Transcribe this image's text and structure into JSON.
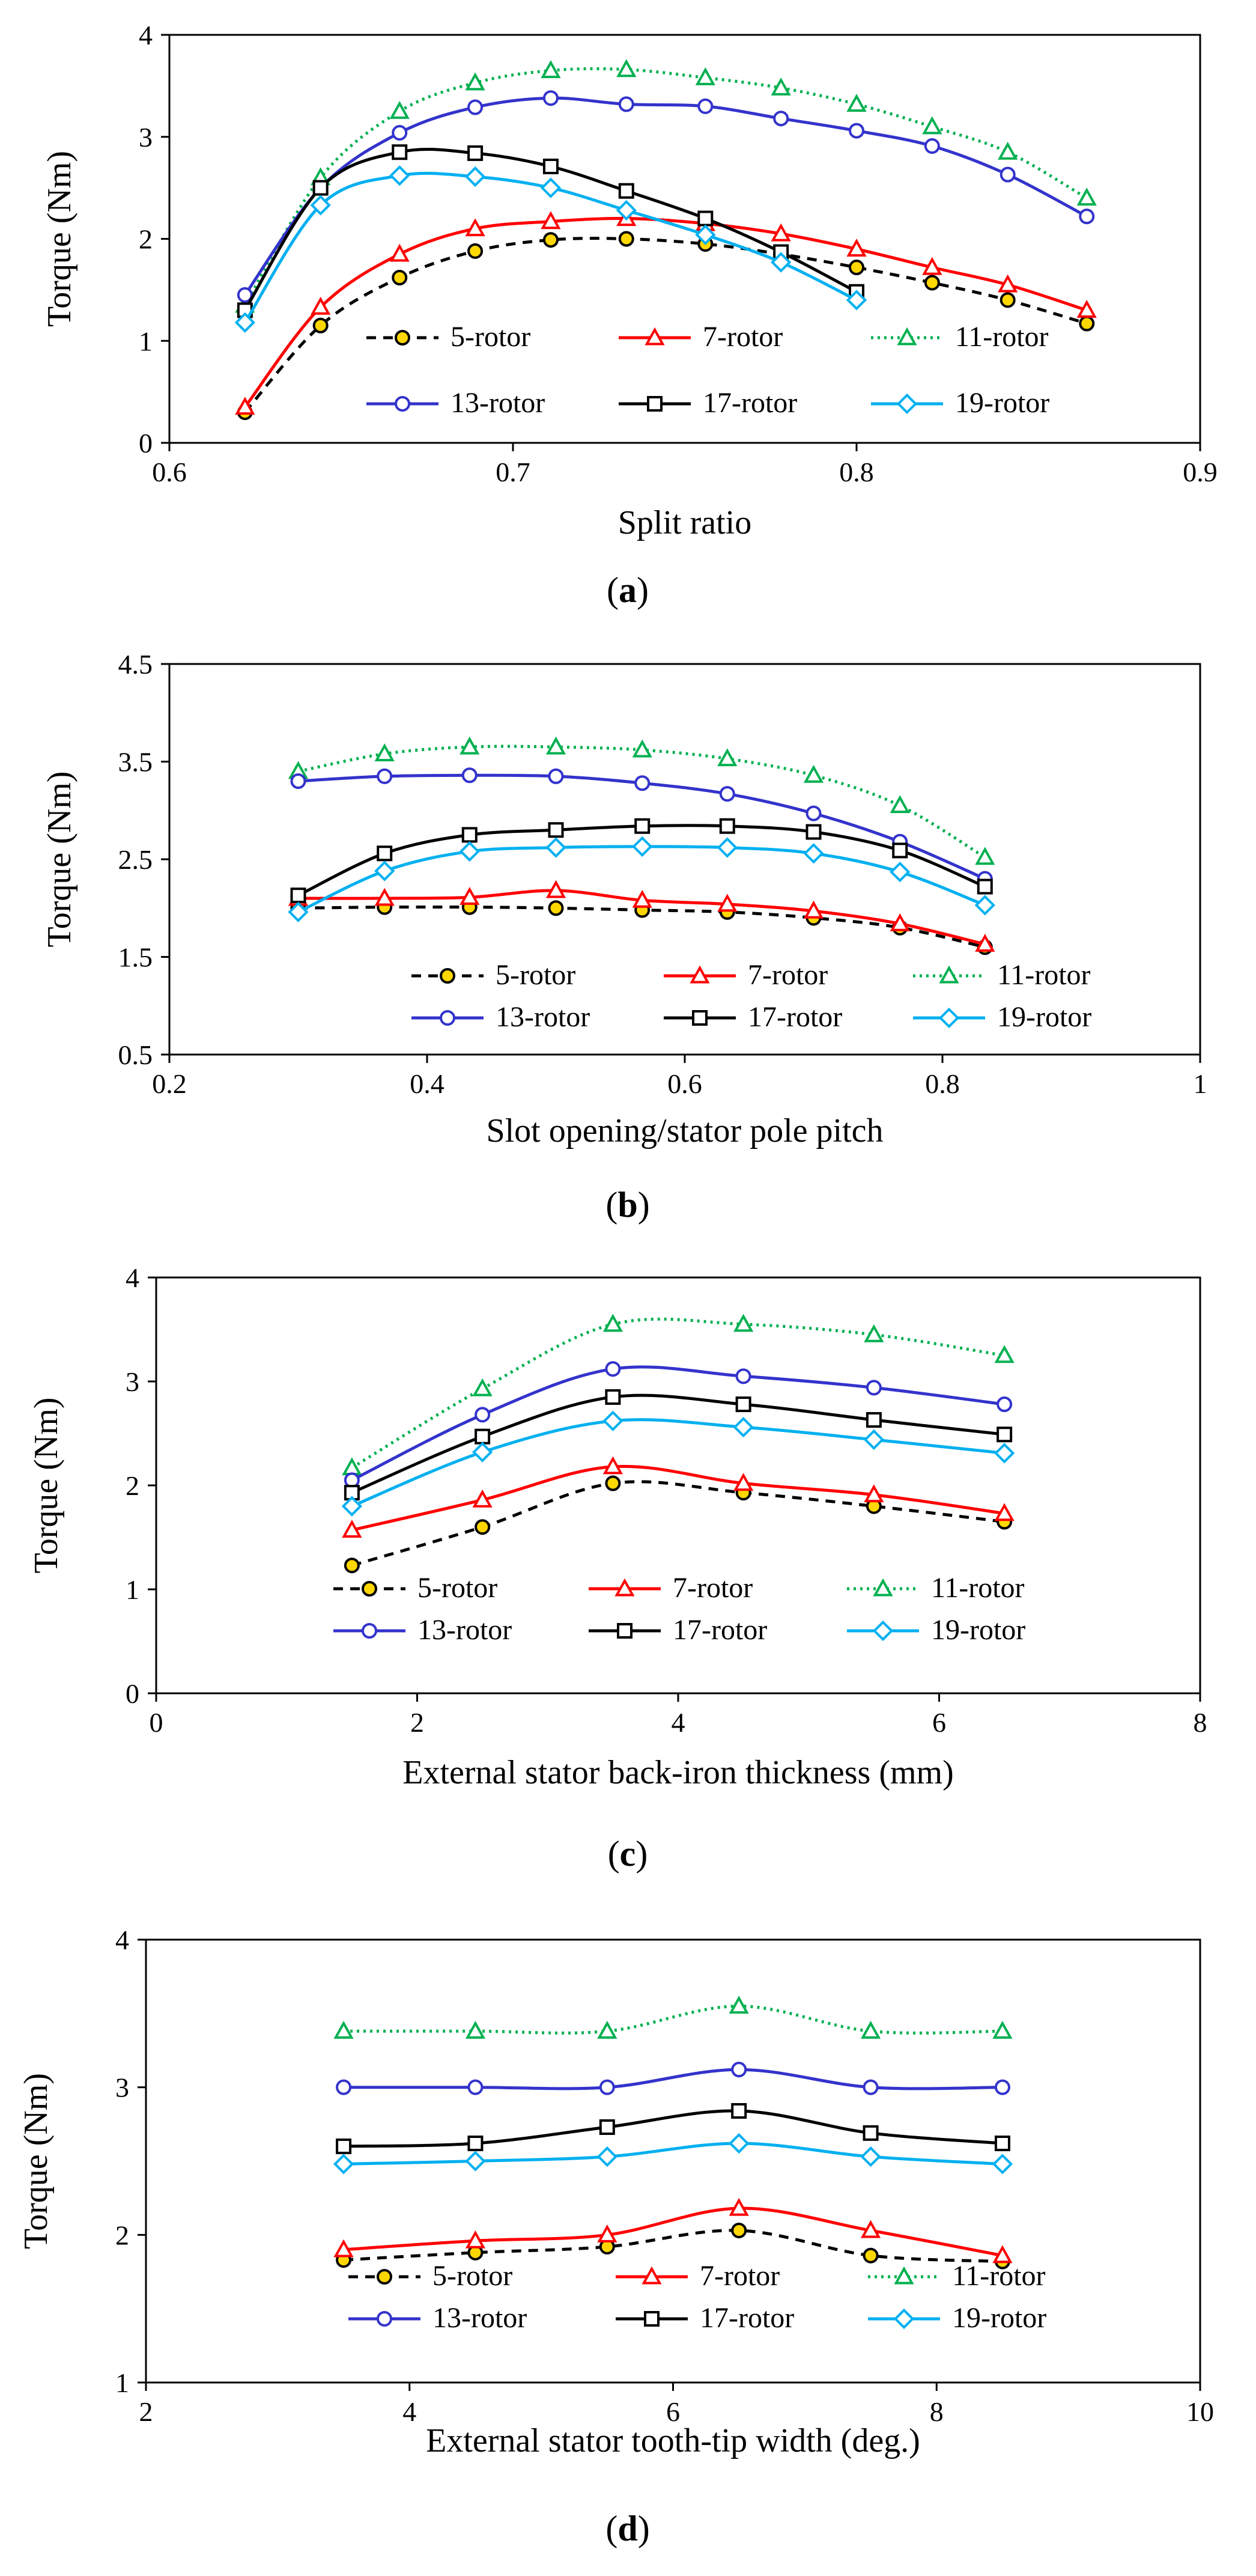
{
  "figure": {
    "series_styles": {
      "5-rotor": {
        "color": "#000000",
        "dash": "16 12",
        "marker": "circle",
        "marker_fill": "#FFD700"
      },
      "7-rotor": {
        "color": "#FF0000",
        "dash": "",
        "marker": "triangle",
        "marker_fill": "#FFFFFF"
      },
      "11-rotor": {
        "color": "#00B050",
        "dash": "4 7",
        "marker": "triangle",
        "marker_fill": "#FFFFFF"
      },
      "13-rotor": {
        "color": "#3333CC",
        "dash": "",
        "marker": "circle",
        "marker_fill": "#FFFFFF"
      },
      "17-rotor": {
        "color": "#000000",
        "dash": "",
        "marker": "square",
        "marker_fill": "#FFFFFF"
      },
      "19-rotor": {
        "color": "#00B0F0",
        "dash": "",
        "marker": "diamond",
        "marker_fill": "#FFFFFF"
      }
    }
  },
  "chart_data": [
    {
      "type": "line",
      "caption_letter": "a",
      "xlabel": "Split ratio",
      "ylabel": "Torque (Nm)",
      "xlim": [
        0.6,
        0.9
      ],
      "ylim": [
        0,
        4
      ],
      "xticks": [
        0.6,
        0.7,
        0.8,
        0.9
      ],
      "yticks": [
        0,
        1,
        2,
        3,
        4
      ],
      "xtick_labels": [
        "0.6",
        "0.7",
        "0.8",
        "0.9"
      ],
      "ytick_labels": [
        "0",
        "1",
        "2",
        "3",
        "4"
      ],
      "legend": {
        "columns": 3,
        "placement": "bottom-inside"
      },
      "series": [
        {
          "name": "5-rotor",
          "x": [
            0.622,
            0.644,
            0.667,
            0.689,
            0.711,
            0.733,
            0.756,
            0.778,
            0.8,
            0.822,
            0.844,
            0.867
          ],
          "y": [
            0.3,
            1.15,
            1.62,
            1.88,
            1.99,
            2.0,
            1.95,
            1.85,
            1.72,
            1.57,
            1.4,
            1.17
          ]
        },
        {
          "name": "7-rotor",
          "x": [
            0.622,
            0.644,
            0.667,
            0.689,
            0.711,
            0.733,
            0.756,
            0.778,
            0.8,
            0.822,
            0.844,
            0.867
          ],
          "y": [
            0.35,
            1.33,
            1.85,
            2.1,
            2.17,
            2.2,
            2.15,
            2.05,
            1.9,
            1.72,
            1.55,
            1.3
          ]
        },
        {
          "name": "11-rotor",
          "x": [
            0.622,
            0.644,
            0.667,
            0.689,
            0.711,
            0.733,
            0.756,
            0.778,
            0.8,
            0.822,
            0.844,
            0.867
          ],
          "y": [
            1.35,
            2.6,
            3.25,
            3.53,
            3.65,
            3.66,
            3.58,
            3.48,
            3.32,
            3.1,
            2.85,
            2.4
          ]
        },
        {
          "name": "13-rotor",
          "x": [
            0.622,
            0.644,
            0.667,
            0.689,
            0.711,
            0.733,
            0.756,
            0.778,
            0.8,
            0.822,
            0.844,
            0.867
          ],
          "y": [
            1.45,
            2.5,
            3.04,
            3.29,
            3.38,
            3.32,
            3.3,
            3.18,
            3.06,
            2.91,
            2.63,
            2.22
          ]
        },
        {
          "name": "17-rotor",
          "x": [
            0.622,
            0.644,
            0.667,
            0.689,
            0.711,
            0.733,
            0.756,
            0.778,
            0.8
          ],
          "y": [
            1.3,
            2.5,
            2.85,
            2.84,
            2.71,
            2.47,
            2.2,
            1.87,
            1.48
          ]
        },
        {
          "name": "19-rotor",
          "x": [
            0.622,
            0.644,
            0.667,
            0.689,
            0.711,
            0.733,
            0.756,
            0.778,
            0.8
          ],
          "y": [
            1.18,
            2.33,
            2.62,
            2.61,
            2.5,
            2.28,
            2.04,
            1.77,
            1.4
          ]
        }
      ]
    },
    {
      "type": "line",
      "caption_letter": "b",
      "xlabel": "Slot opening/stator pole pitch",
      "ylabel": "Torque (Nm)",
      "xlim": [
        0.2,
        1
      ],
      "ylim": [
        0.5,
        4.5
      ],
      "xticks": [
        0.2,
        0.4,
        0.6,
        0.8,
        1
      ],
      "yticks": [
        0.5,
        1.5,
        2.5,
        3.5,
        4.5
      ],
      "xtick_labels": [
        "0.2",
        "0.4",
        "0.6",
        "0.8",
        "1"
      ],
      "ytick_labels": [
        "0.5",
        "1.5",
        "2.5",
        "3.5",
        "4.5"
      ],
      "legend": {
        "columns": 3,
        "placement": "bottom-inside"
      },
      "series": [
        {
          "name": "5-rotor",
          "x": [
            0.3,
            0.367,
            0.433,
            0.5,
            0.567,
            0.633,
            0.7,
            0.767,
            0.833
          ],
          "y": [
            2.0,
            2.01,
            2.01,
            2.0,
            1.98,
            1.96,
            1.9,
            1.8,
            1.6
          ]
        },
        {
          "name": "7-rotor",
          "x": [
            0.3,
            0.367,
            0.433,
            0.5,
            0.567,
            0.633,
            0.7,
            0.767,
            0.833
          ],
          "y": [
            2.1,
            2.1,
            2.11,
            2.18,
            2.08,
            2.04,
            1.97,
            1.84,
            1.63
          ]
        },
        {
          "name": "11-rotor",
          "x": [
            0.3,
            0.367,
            0.433,
            0.5,
            0.567,
            0.633,
            0.7,
            0.767,
            0.833
          ],
          "y": [
            3.4,
            3.58,
            3.65,
            3.65,
            3.62,
            3.53,
            3.36,
            3.05,
            2.52
          ]
        },
        {
          "name": "13-rotor",
          "x": [
            0.3,
            0.367,
            0.433,
            0.5,
            0.567,
            0.633,
            0.7,
            0.767,
            0.833
          ],
          "y": [
            3.3,
            3.35,
            3.36,
            3.35,
            3.28,
            3.17,
            2.97,
            2.68,
            2.3
          ]
        },
        {
          "name": "17-rotor",
          "x": [
            0.3,
            0.367,
            0.433,
            0.5,
            0.567,
            0.633,
            0.7,
            0.767,
            0.833
          ],
          "y": [
            2.13,
            2.56,
            2.75,
            2.8,
            2.84,
            2.84,
            2.78,
            2.59,
            2.22
          ]
        },
        {
          "name": "19-rotor",
          "x": [
            0.3,
            0.367,
            0.433,
            0.5,
            0.567,
            0.633,
            0.7,
            0.767,
            0.833
          ],
          "y": [
            1.96,
            2.38,
            2.58,
            2.62,
            2.63,
            2.62,
            2.56,
            2.37,
            2.03
          ]
        }
      ]
    },
    {
      "type": "line",
      "caption_letter": "c",
      "xlabel": "External stator back-iron thickness (mm)",
      "ylabel": "Torque (Nm)",
      "xlim": [
        0,
        8
      ],
      "ylim": [
        0,
        4
      ],
      "xticks": [
        0,
        2,
        4,
        6,
        8
      ],
      "yticks": [
        0,
        1,
        2,
        3,
        4
      ],
      "xtick_labels": [
        "0",
        "2",
        "4",
        "6",
        "8"
      ],
      "ytick_labels": [
        "0",
        "1",
        "2",
        "3",
        "4"
      ],
      "legend": {
        "columns": 3,
        "placement": "bottom-inside"
      },
      "series": [
        {
          "name": "5-rotor",
          "x": [
            1.5,
            2.5,
            3.5,
            4.5,
            5.5,
            6.5
          ],
          "y": [
            1.23,
            1.6,
            2.02,
            1.93,
            1.8,
            1.65
          ]
        },
        {
          "name": "7-rotor",
          "x": [
            1.5,
            2.5,
            3.5,
            4.5,
            5.5,
            6.5
          ],
          "y": [
            1.57,
            1.86,
            2.18,
            2.02,
            1.91,
            1.73
          ]
        },
        {
          "name": "11-rotor",
          "x": [
            1.5,
            2.5,
            3.5,
            4.5,
            5.5,
            6.5
          ],
          "y": [
            2.17,
            2.93,
            3.55,
            3.55,
            3.45,
            3.25
          ]
        },
        {
          "name": "13-rotor",
          "x": [
            1.5,
            2.5,
            3.5,
            4.5,
            5.5,
            6.5
          ],
          "y": [
            2.05,
            2.68,
            3.12,
            3.05,
            2.94,
            2.78
          ]
        },
        {
          "name": "17-rotor",
          "x": [
            1.5,
            2.5,
            3.5,
            4.5,
            5.5,
            6.5
          ],
          "y": [
            1.93,
            2.47,
            2.85,
            2.78,
            2.63,
            2.49
          ]
        },
        {
          "name": "19-rotor",
          "x": [
            1.5,
            2.5,
            3.5,
            4.5,
            5.5,
            6.5
          ],
          "y": [
            1.8,
            2.32,
            2.62,
            2.56,
            2.44,
            2.31
          ]
        }
      ]
    },
    {
      "type": "line",
      "caption_letter": "d",
      "xlabel": "External stator tooth-tip width (deg.)",
      "ylabel": "Torque (Nm)",
      "xlim": [
        2,
        10
      ],
      "ylim": [
        1,
        4
      ],
      "xticks": [
        2,
        4,
        6,
        8,
        10
      ],
      "yticks": [
        1,
        2,
        3,
        4
      ],
      "xtick_labels": [
        "2",
        "4",
        "6",
        "8",
        "10"
      ],
      "ytick_labels": [
        "1",
        "2",
        "3",
        "4"
      ],
      "legend": {
        "columns": 3,
        "placement": "bottom-inside"
      },
      "series": [
        {
          "name": "5-rotor",
          "x": [
            3.5,
            4.5,
            5.5,
            6.5,
            7.5,
            8.5
          ],
          "y": [
            1.83,
            1.88,
            1.92,
            2.03,
            1.86,
            1.82
          ]
        },
        {
          "name": "7-rotor",
          "x": [
            3.5,
            4.5,
            5.5,
            6.5,
            7.5,
            8.5
          ],
          "y": [
            1.9,
            1.96,
            2.0,
            2.18,
            2.03,
            1.86
          ]
        },
        {
          "name": "11-rotor",
          "x": [
            3.5,
            4.5,
            5.5,
            6.5,
            7.5,
            8.5
          ],
          "y": [
            3.38,
            3.38,
            3.38,
            3.55,
            3.38,
            3.38
          ]
        },
        {
          "name": "13-rotor",
          "x": [
            3.5,
            4.5,
            5.5,
            6.5,
            7.5,
            8.5
          ],
          "y": [
            3.0,
            3.0,
            3.0,
            3.12,
            3.0,
            3.0
          ]
        },
        {
          "name": "17-rotor",
          "x": [
            3.5,
            4.5,
            5.5,
            6.5,
            7.5,
            8.5
          ],
          "y": [
            2.6,
            2.62,
            2.73,
            2.84,
            2.69,
            2.62
          ]
        },
        {
          "name": "19-rotor",
          "x": [
            3.5,
            4.5,
            5.5,
            6.5,
            7.5,
            8.5
          ],
          "y": [
            2.48,
            2.5,
            2.53,
            2.62,
            2.53,
            2.48
          ]
        }
      ]
    }
  ]
}
